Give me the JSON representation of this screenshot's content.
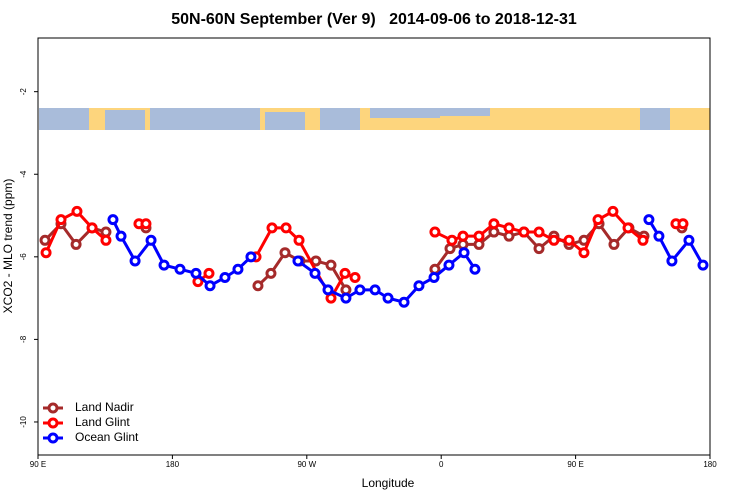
{
  "chart_data": {
    "type": "line",
    "title": "50N-60N September (Ver 9)   2014-09-06 to 2018-12-31",
    "x_label": "Longitude",
    "y_label": "XCO2 - MLO trend (ppm)",
    "xlim": [
      90,
      540
    ],
    "xticks": [
      {
        "value": 90,
        "label": "90 E"
      },
      180,
      {
        "value": 270,
        "label": "90 W"
      },
      {
        "value": 360,
        "label": "0"
      },
      {
        "value": 450,
        "label": "90 E"
      },
      {
        "value": 540,
        "label": "180"
      }
    ],
    "ylim": [
      -10.8,
      -0.7
    ],
    "yticks": [
      -10,
      -8,
      -6,
      -4,
      -2
    ],
    "legend": "bottom-left",
    "series": [
      {
        "name": "Land Nadir",
        "color": "#a52a2a",
        "x": [
          94.7,
          105.4,
          115.5,
          126.2,
          135.5,
          null,
          162.3,
          null,
          237.3,
          246.0,
          255.4,
          265.4,
          276.1,
          286.2,
          296.2,
          null,
          355.8,
          365.9,
          374.6,
          385.3,
          395.3,
          405.4,
          415.4,
          425.5,
          435.5,
          445.6,
          455.6,
          465.7,
          475.7,
          485.7,
          495.8,
          null,
          521.2
        ],
        "values": [
          -5.6,
          -5.2,
          -5.7,
          -5.3,
          -5.4,
          null,
          -5.3,
          null,
          -6.7,
          -6.4,
          -5.9,
          -6.1,
          -6.1,
          -6.2,
          -6.8,
          null,
          -6.3,
          -5.8,
          -5.7,
          -5.7,
          -5.4,
          -5.5,
          -5.4,
          -5.8,
          -5.5,
          -5.7,
          -5.6,
          -5.2,
          -5.7,
          -5.3,
          -5.5,
          null,
          -5.3
        ]
      },
      {
        "name": "Land Glint",
        "color": "#ff0000",
        "x": [
          95.4,
          105.4,
          116.1,
          126.2,
          135.5,
          null,
          157.6,
          162.3,
          null,
          197.1,
          204.5,
          null,
          236.0,
          246.7,
          256.1,
          264.8,
          286.2,
          295.6,
          302.3,
          null,
          355.8,
          367.2,
          374.6,
          385.3,
          395.3,
          405.4,
          415.4,
          425.5,
          435.5,
          445.6,
          455.6,
          465.0,
          475.0,
          485.1,
          495.1,
          null,
          517.2,
          521.9
        ],
        "values": [
          -5.9,
          -5.1,
          -4.9,
          -5.3,
          -5.6,
          null,
          -5.2,
          -5.2,
          null,
          -6.6,
          -6.4,
          null,
          -6.0,
          -5.3,
          -5.3,
          -5.6,
          -7.0,
          -6.4,
          -6.5,
          null,
          -5.4,
          -5.6,
          -5.5,
          -5.5,
          -5.2,
          -5.3,
          -5.4,
          -5.4,
          -5.6,
          -5.6,
          -5.9,
          -5.1,
          -4.9,
          -5.3,
          -5.6,
          null,
          -5.2,
          -5.2
        ]
      },
      {
        "name": "Ocean Glint",
        "color": "#0000ff",
        "x": [
          140.2,
          145.6,
          155.0,
          165.7,
          174.4,
          185.1,
          195.8,
          205.2,
          215.2,
          223.9,
          232.6,
          null,
          264.1,
          275.5,
          284.2,
          296.2,
          305.6,
          315.7,
          324.4,
          335.1,
          345.1,
          355.2,
          365.2,
          375.3,
          382.6,
          null,
          499.1,
          505.8,
          514.5,
          525.9,
          535.3
        ],
        "values": [
          -5.1,
          -5.5,
          -6.1,
          -5.6,
          -6.2,
          -6.3,
          -6.4,
          -6.7,
          -6.5,
          -6.3,
          -6.0,
          null,
          -6.1,
          -6.4,
          -6.8,
          -7.0,
          -6.8,
          -6.8,
          -7.0,
          -7.1,
          -6.7,
          -6.5,
          -6.2,
          -5.9,
          -6.3,
          null,
          -5.1,
          -5.5,
          -6.1,
          -5.6,
          -6.2
        ]
      }
    ]
  }
}
